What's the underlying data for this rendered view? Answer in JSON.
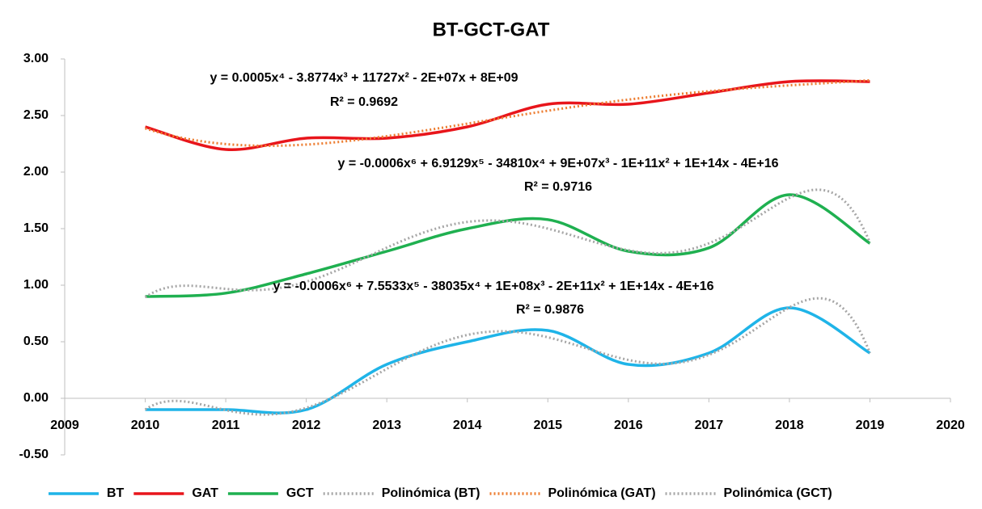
{
  "chart_data": {
    "type": "line",
    "title": "BT-GCT-GAT",
    "x": [
      2010,
      2011,
      2012,
      2013,
      2014,
      2015,
      2016,
      2017,
      2018,
      2019
    ],
    "series": [
      {
        "name": "BT",
        "color": "#1fb4e8",
        "values": [
          -0.1,
          -0.1,
          -0.1,
          0.3,
          0.5,
          0.6,
          0.3,
          0.4,
          0.8,
          0.4
        ]
      },
      {
        "name": "GAT",
        "color": "#e8151b",
        "values": [
          2.4,
          2.2,
          2.3,
          2.3,
          2.4,
          2.6,
          2.6,
          2.7,
          2.8,
          2.8
        ]
      },
      {
        "name": "GCT",
        "color": "#1fb050",
        "values": [
          0.9,
          0.93,
          1.1,
          1.3,
          1.5,
          1.58,
          1.3,
          1.33,
          1.8,
          1.37
        ]
      }
    ],
    "fits": [
      {
        "name": "Polinómica (BT)",
        "color": "#a6a6a6",
        "series": 0,
        "degree": 6,
        "equation": "y = -0.0006x⁶ + 7.5533x⁵ - 38035x⁴ + 1E+08x³ - 2E+11x² + 1E+14x - 4E+16",
        "r2": "R² = 0.9876"
      },
      {
        "name": "Polinómica (GAT)",
        "color": "#ed7d31",
        "series": 1,
        "degree": 4,
        "equation": "y = 0.0005x⁴ - 3.8774x³ + 11727x² - 2E+07x + 8E+09",
        "r2": "R² = 0.9692"
      },
      {
        "name": "Polinómica (GCT)",
        "color": "#a6a6a6",
        "series": 2,
        "degree": 6,
        "equation": "y = -0.0006x⁶ + 6.9129x⁵ - 34810x⁴ + 9E+07x³ - 1E+11x² + 1E+14x - 4E+16",
        "r2": "R² = 0.9716"
      }
    ],
    "xlim": [
      2009,
      2020
    ],
    "xticks": [
      2009,
      2010,
      2011,
      2012,
      2013,
      2014,
      2015,
      2016,
      2017,
      2018,
      2019,
      2020
    ],
    "ylim": [
      -0.5,
      3
    ],
    "yticks": [
      {
        "value": -0.5,
        "label": "-0.50"
      },
      {
        "value": 0,
        "label": "0.00"
      },
      {
        "value": 0.5,
        "label": "0.50"
      },
      {
        "value": 1,
        "label": "1.00"
      },
      {
        "value": 1.5,
        "label": "1.50"
      },
      {
        "value": 2,
        "label": "2.00"
      },
      {
        "value": 2.5,
        "label": "2.50"
      },
      {
        "value": 3,
        "label": "3.00"
      }
    ],
    "legend": "bottom"
  }
}
